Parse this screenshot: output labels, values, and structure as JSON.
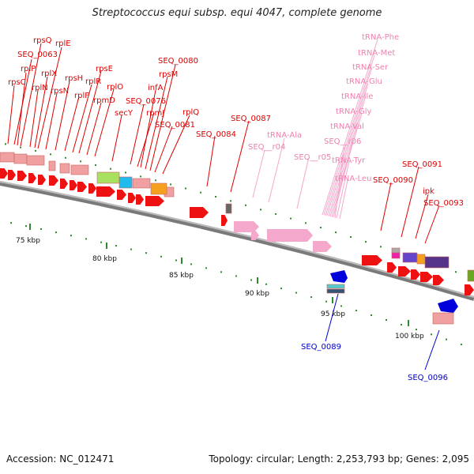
{
  "title": "Streptococcus equi subsp. equi 4047, complete genome",
  "footer": {
    "accession": "Accession: NC_012471",
    "topology": "Topology: circular; Length: 2,253,793 bp; Genes: 2,095"
  },
  "colors": {
    "gene_red": "#ee1111",
    "label_red": "#dd0000",
    "label_pink": "#f080b0",
    "label_blue": "#0000cc",
    "trna_pink": "#f4a8cc",
    "backbone": "#8c8c8c",
    "tick": "#2e8b2e"
  },
  "ticks": [
    {
      "label": "75 kbp"
    },
    {
      "label": "80 kbp"
    },
    {
      "label": "85 kbp"
    },
    {
      "label": "90 kbp"
    },
    {
      "label": "95 kbp"
    },
    {
      "label": "100 kbp"
    }
  ],
  "labels_red": [
    "rpsQ",
    "rplE",
    "SEQ_0063",
    "rplP",
    "rplX",
    "rpsC",
    "rplN",
    "rpsH",
    "rpsE",
    "rplR",
    "rpsN",
    "rplF",
    "rplO",
    "rpmD",
    "secY",
    "SEQ_0080",
    "rpsM",
    "infA",
    "SEQ_0076",
    "rpmJ",
    "rplQ",
    "SEQ_0081",
    "SEQ_0087",
    "SEQ_0084",
    "SEQ_0091",
    "SEQ_0090",
    "ipk",
    "SEQ_0093"
  ],
  "labels_pink": [
    "tRNA-Phe",
    "tRNA-Met",
    "tRNA-Ser",
    "tRNA-Glu",
    "tRNA-Ile",
    "tRNA-Gly",
    "tRNA-Ala",
    "tRNA-Val",
    "SEQ__r04",
    "SEQ__r06",
    "SEQ__r05",
    "tRNA-Tyr",
    "tRNA-Leu"
  ],
  "labels_blue": [
    "SEQ_0089",
    "SEQ_0096"
  ]
}
